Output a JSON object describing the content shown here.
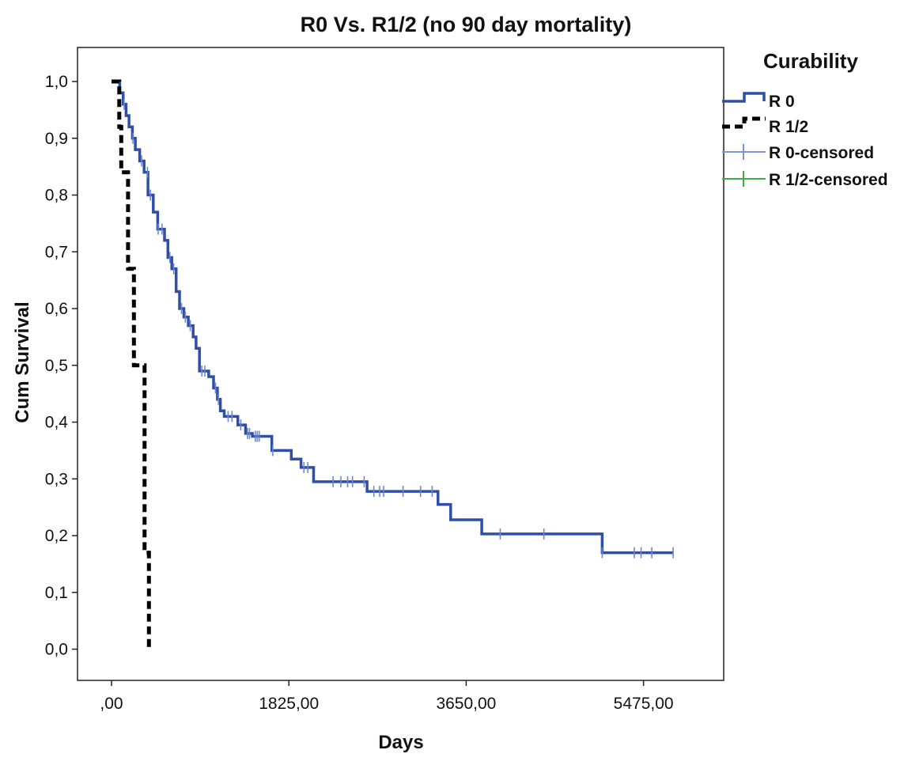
{
  "chart_data": {
    "type": "line",
    "title": "R0 Vs. R1/2 (no 90 day mortality)",
    "xlabel": "Days",
    "ylabel": "Cum Survival",
    "xlim": [
      -350,
      6300
    ],
    "ylim": [
      -0.055,
      1.06
    ],
    "x_ticks": [
      0,
      1825,
      3650,
      5475
    ],
    "x_tick_labels": [
      ",00",
      "1825,00",
      "3650,00",
      "5475,00"
    ],
    "y_ticks": [
      0,
      0.1,
      0.2,
      0.3,
      0.4,
      0.5,
      0.6,
      0.7,
      0.8,
      0.9,
      1.0
    ],
    "y_tick_labels": [
      "0,0",
      "0,1",
      "0,2",
      "0,3",
      "0,4",
      "0,5",
      "0,6",
      "0,7",
      "0,8",
      "0,9",
      "1,0"
    ],
    "grid": false,
    "legend": {
      "title": "Curability",
      "position": "right",
      "entries": [
        {
          "label": "R 0",
          "color": "#2e4ea8",
          "style": "solid-step"
        },
        {
          "label": "R 1/2",
          "color": "#000000",
          "style": "dashed-step"
        },
        {
          "label": "R 0-censored",
          "color": "#7f93d3",
          "style": "censor-mark"
        },
        {
          "label": "R 1/2-censored",
          "color": "#3cb043",
          "style": "censor-mark"
        }
      ]
    },
    "series": [
      {
        "name": "R 0",
        "color": "#2e4ea8",
        "steps": [
          [
            0,
            1.0
          ],
          [
            85,
            0.98
          ],
          [
            120,
            0.96
          ],
          [
            150,
            0.94
          ],
          [
            180,
            0.92
          ],
          [
            215,
            0.9
          ],
          [
            245,
            0.88
          ],
          [
            290,
            0.86
          ],
          [
            335,
            0.84
          ],
          [
            375,
            0.8
          ],
          [
            430,
            0.77
          ],
          [
            475,
            0.74
          ],
          [
            545,
            0.72
          ],
          [
            580,
            0.69
          ],
          [
            620,
            0.67
          ],
          [
            665,
            0.63
          ],
          [
            700,
            0.6
          ],
          [
            745,
            0.585
          ],
          [
            790,
            0.57
          ],
          [
            840,
            0.55
          ],
          [
            870,
            0.53
          ],
          [
            905,
            0.49
          ],
          [
            1000,
            0.48
          ],
          [
            1050,
            0.46
          ],
          [
            1090,
            0.44
          ],
          [
            1120,
            0.42
          ],
          [
            1160,
            0.41
          ],
          [
            1300,
            0.395
          ],
          [
            1380,
            0.38
          ],
          [
            1450,
            0.375
          ],
          [
            1650,
            0.35
          ],
          [
            1850,
            0.335
          ],
          [
            1950,
            0.32
          ],
          [
            2080,
            0.295
          ],
          [
            2630,
            0.278
          ],
          [
            3360,
            0.255
          ],
          [
            3490,
            0.228
          ],
          [
            3810,
            0.203
          ],
          [
            5050,
            0.17
          ]
        ],
        "end_x": 5780,
        "censor_x": [
          130,
          220,
          310,
          370,
          400,
          480,
          520,
          600,
          640,
          720,
          760,
          810,
          930,
          960,
          1070,
          1100,
          1200,
          1240,
          1330,
          1400,
          1420,
          1480,
          1500,
          1520,
          1660,
          1980,
          2020,
          2280,
          2360,
          2430,
          2480,
          2600,
          2700,
          2760,
          2800,
          3000,
          3180,
          3300,
          4000,
          4450,
          5050,
          5380,
          5450,
          5560,
          5780
        ]
      },
      {
        "name": "R 1/2",
        "color": "#000000",
        "steps": [
          [
            0,
            1.0
          ],
          [
            80,
            0.92
          ],
          [
            100,
            0.84
          ],
          [
            170,
            0.67
          ],
          [
            230,
            0.5
          ],
          [
            340,
            0.17
          ],
          [
            385,
            0.0
          ]
        ],
        "end_x": 385,
        "censor_x": []
      }
    ]
  }
}
